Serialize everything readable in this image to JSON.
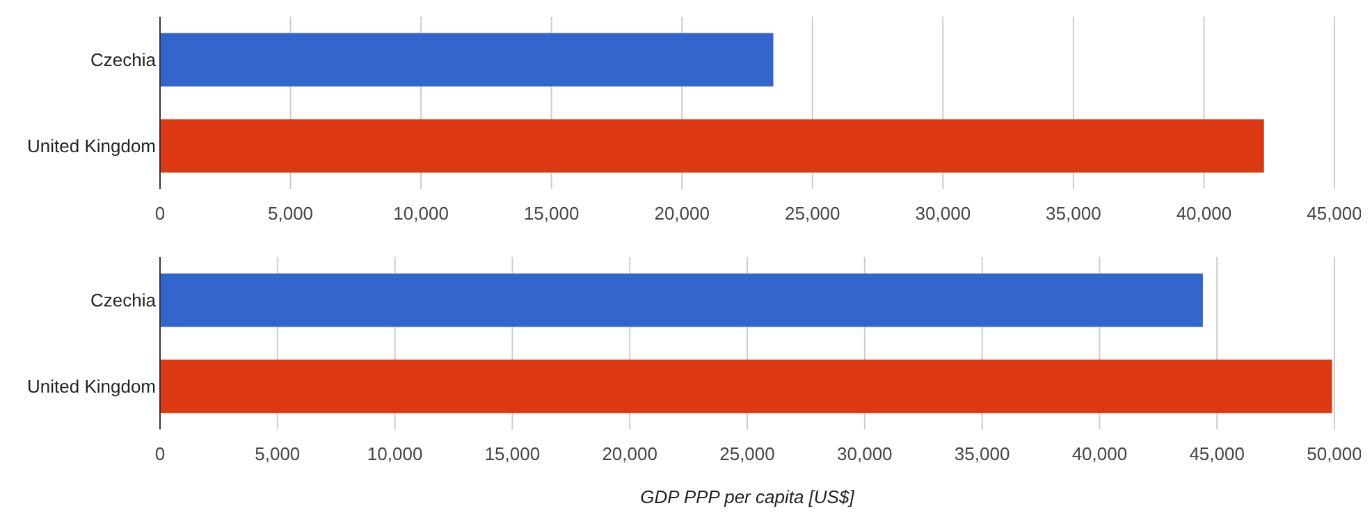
{
  "chart_data": [
    {
      "type": "bar",
      "orientation": "horizontal",
      "categories": [
        "Czechia",
        "United Kingdom"
      ],
      "values": [
        23500,
        42300
      ],
      "colors": [
        "#3366cc",
        "#dc3912"
      ],
      "xlim": [
        0,
        45000
      ],
      "xticks": [
        {
          "value": 0,
          "label": "0"
        },
        {
          "value": 5000,
          "label": "5,000"
        },
        {
          "value": 10000,
          "label": "10,000"
        },
        {
          "value": 15000,
          "label": "15,000"
        },
        {
          "value": 20000,
          "label": "20,000"
        },
        {
          "value": 25000,
          "label": "25,000"
        },
        {
          "value": 30000,
          "label": "30,000"
        },
        {
          "value": 35000,
          "label": "35,000"
        },
        {
          "value": 40000,
          "label": "40,000"
        },
        {
          "value": 45000,
          "label": "45,000"
        }
      ],
      "grid": "x"
    },
    {
      "type": "bar",
      "orientation": "horizontal",
      "categories": [
        "Czechia",
        "United Kingdom"
      ],
      "values": [
        44400,
        49900
      ],
      "colors": [
        "#3366cc",
        "#dc3912"
      ],
      "xlim": [
        0,
        50000
      ],
      "xticks": [
        {
          "value": 0,
          "label": "0"
        },
        {
          "value": 5000,
          "label": "5,000"
        },
        {
          "value": 10000,
          "label": "10,000"
        },
        {
          "value": 15000,
          "label": "15,000"
        },
        {
          "value": 20000,
          "label": "20,000"
        },
        {
          "value": 25000,
          "label": "25,000"
        },
        {
          "value": 30000,
          "label": "30,000"
        },
        {
          "value": 35000,
          "label": "35,000"
        },
        {
          "value": 40000,
          "label": "40,000"
        },
        {
          "value": 45000,
          "label": "45,000"
        },
        {
          "value": 50000,
          "label": "50,000"
        }
      ],
      "grid": "x",
      "xlabel": "GDP PPP per capita [US$]"
    }
  ]
}
